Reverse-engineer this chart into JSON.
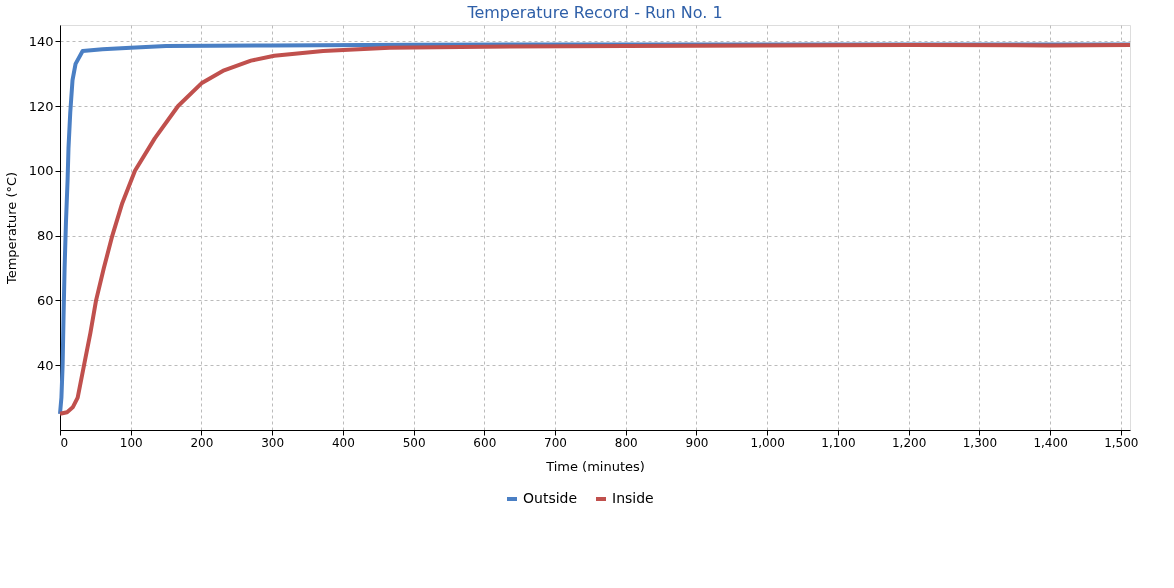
{
  "chart_data": {
    "type": "line",
    "title": "Temperature Record - Run No. 1",
    "xlabel": "Time (minutes)",
    "ylabel": "Temperature (°C)",
    "xlim": [
      0,
      1513
    ],
    "ylim": [
      20,
      145
    ],
    "xticks": [
      0,
      100,
      200,
      300,
      400,
      500,
      600,
      700,
      800,
      900,
      {
        "value": 1000,
        "label": "1,000"
      },
      {
        "value": 1100,
        "label": "1,100"
      },
      {
        "value": 1200,
        "label": "1,200"
      },
      {
        "value": 1300,
        "label": "1,300"
      },
      {
        "value": 1400,
        "label": "1,400"
      },
      {
        "value": 1500,
        "label": "1,500"
      }
    ],
    "yticks": [
      40,
      60,
      80,
      100,
      120,
      140
    ],
    "grid": true,
    "legend": "bottom",
    "marker": "none",
    "series": [
      {
        "name": "Outside",
        "color": "#4a7fc4",
        "x": [
          0,
          2,
          3.7,
          5,
          6.5,
          8.4,
          10.7,
          12,
          14.5,
          17.7,
          22,
          32,
          60,
          100,
          150,
          300,
          500,
          800,
          1100,
          1400,
          1513
        ],
        "values": [
          25,
          30,
          40,
          55,
          70,
          84,
          97,
          107,
          118,
          128,
          133,
          137,
          137.5,
          138,
          138.5,
          138.7,
          138.9,
          139,
          139,
          139,
          139
        ]
      },
      {
        "name": "Inside",
        "color": "#c0504d",
        "x": [
          0,
          10,
          18,
          25,
          34,
          43,
          51,
          62,
          74,
          88,
          106,
          134,
          167,
          200,
          232,
          270,
          303,
          372,
          466,
          600,
          800,
          1000,
          1200,
          1400,
          1513
        ],
        "values": [
          25,
          25.5,
          27,
          30,
          40,
          50,
          60,
          70,
          80,
          90,
          100,
          110,
          120,
          127,
          131,
          134,
          135.5,
          137,
          138,
          138.3,
          138.5,
          138.7,
          138.8,
          138.7,
          138.8
        ]
      }
    ]
  }
}
